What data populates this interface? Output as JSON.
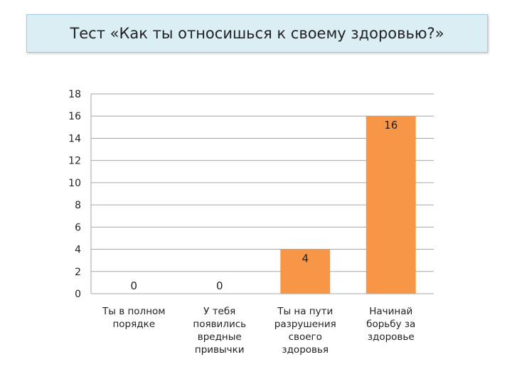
{
  "header": {
    "title": "Тест «Как ты относишься к своему здоровью?»"
  },
  "chart_data": {
    "type": "bar",
    "categories": [
      [
        "Ты в полном",
        "порядке"
      ],
      [
        "У тебя",
        "появились",
        "вредные",
        "привычки"
      ],
      [
        "Ты на пути",
        "разрушения",
        "своего",
        "здоровья"
      ],
      [
        "Начинай",
        "борьбу за",
        "здоровье"
      ]
    ],
    "values": [
      0,
      0,
      4,
      16
    ],
    "data_labels": [
      "0",
      "0",
      "4",
      "16"
    ],
    "ylim": [
      0,
      18
    ],
    "yticks": [
      0,
      2,
      4,
      6,
      8,
      10,
      12,
      14,
      16,
      18
    ],
    "grid": true,
    "legend": "none",
    "bar_color": "#f79646",
    "grid_color": "#a6a6a6"
  }
}
